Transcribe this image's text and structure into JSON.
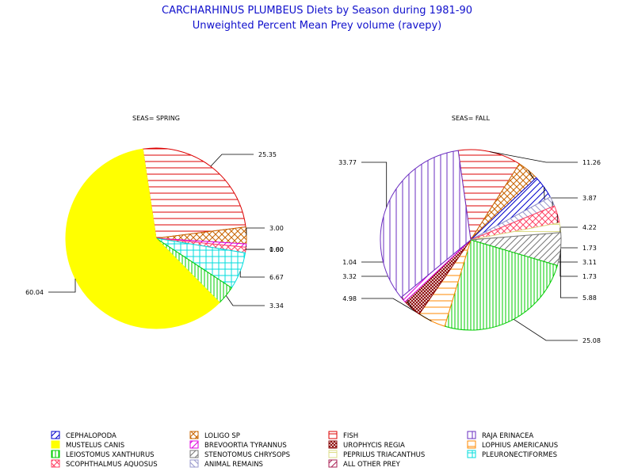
{
  "title": "CARCHARHINUS PLUMBEUS Diets by Season during 1981-90",
  "subtitle": "Unweighted Percent Mean Prey volume (ravepy)",
  "colors": {
    "CEPHALOPODA": "#0000cc",
    "LOLIGO SP": "#c86400",
    "FISH": "#dc0000",
    "RAJA ERINACEA": "#6a2cc0",
    "MUSTELUS CANIS": "#ffff00",
    "BREVOORTIA TYRANNUS": "#dd00dd",
    "UROPHYCIS REGIA": "#880000",
    "LOPHIUS AMERICANUS": "#ff8800",
    "LEIOSTOMUS XANTHURUS": "#00cc00",
    "STENOTOMUS CHRYSOPS": "#777777",
    "PEPRILUS TRIACANTHUS": "#dddd88",
    "PLEURONECTIFORMES": "#00dddd",
    "SCOPHTHALMUS AQUOSUS": "#ff4466",
    "ANIMAL REMAINS": "#9999cc",
    "ALL OTHER PREY": "#aa2255"
  },
  "chart_data": [
    {
      "type": "pie",
      "title": "SEAS= SPRING",
      "slices": [
        {
          "label": "FISH",
          "value": 25.35,
          "text": "25.35"
        },
        {
          "label": "LOLIGO SP",
          "value": 3.0,
          "text": "3.00"
        },
        {
          "label": "BREVOORTIA TYRANNUS",
          "value": 0.6,
          "text": "0.60"
        },
        {
          "label": "SCOPHTHALMUS AQUOSUS",
          "value": 1.0,
          "text": "1.00"
        },
        {
          "label": "PLEURONECTIFORMES",
          "value": 6.67,
          "text": "6.67"
        },
        {
          "label": "LEIOSTOMUS XANTHURUS",
          "value": 3.34,
          "text": "3.34"
        },
        {
          "label": "MUSTELUS CANIS",
          "value": 60.04,
          "text": "60.04"
        }
      ]
    },
    {
      "type": "pie",
      "title": "SEAS= FALL",
      "slices": [
        {
          "label": "FISH",
          "value": 11.26,
          "text": "11.26"
        },
        {
          "label": "LOLIGO SP",
          "value": 3.87,
          "text": "3.87"
        },
        {
          "label": "CEPHALOPODA",
          "value": 4.22,
          "text": "4.22"
        },
        {
          "label": "ANIMAL REMAINS",
          "value": 1.73,
          "text": "1.73"
        },
        {
          "label": "SCOPHTHALMUS AQUOSUS",
          "value": 3.11,
          "text": "3.11"
        },
        {
          "label": "PEPRILUS TRIACANTHUS",
          "value": 1.73,
          "text": "1.73"
        },
        {
          "label": "STENOTOMUS CHRYSOPS",
          "value": 5.88,
          "text": "5.88"
        },
        {
          "label": "LEIOSTOMUS XANTHURUS",
          "value": 25.08,
          "text": "25.08"
        },
        {
          "label": "LOPHIUS AMERICANUS",
          "value": 4.98,
          "text": "4.98"
        },
        {
          "label": "UROPHYCIS REGIA",
          "value": 3.32,
          "text": "3.32"
        },
        {
          "label": "BREVOORTIA TYRANNUS",
          "value": 1.04,
          "text": "1.04"
        },
        {
          "label": "RAJA ERINACEA",
          "value": 33.77,
          "text": "33.77"
        }
      ]
    }
  ],
  "legend": [
    {
      "label": "CEPHALOPODA"
    },
    {
      "label": "LOLIGO SP"
    },
    {
      "label": "FISH"
    },
    {
      "label": "RAJA ERINACEA"
    },
    {
      "label": "MUSTELUS CANIS"
    },
    {
      "label": "BREVOORTIA TYRANNUS"
    },
    {
      "label": "UROPHYCIS REGIA"
    },
    {
      "label": "LOPHIUS AMERICANUS"
    },
    {
      "label": "LEIOSTOMUS XANTHURUS"
    },
    {
      "label": "STENOTOMUS CHRYSOPS"
    },
    {
      "label": "PEPRILUS TRIACANTHUS"
    },
    {
      "label": "PLEURONECTIFORMES"
    },
    {
      "label": "SCOPHTHALMUS AQUOSUS"
    },
    {
      "label": "ANIMAL REMAINS"
    },
    {
      "label": "ALL OTHER PREY"
    }
  ]
}
